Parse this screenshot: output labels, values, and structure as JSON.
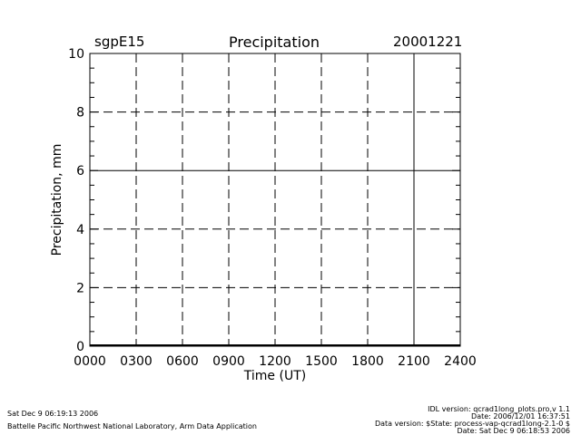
{
  "header": {
    "site": "sgpE15",
    "date": "20001221"
  },
  "chart_data": {
    "type": "line",
    "title": "Precipitation",
    "xlabel": "Time (UT)",
    "ylabel": "Precipitation, mm",
    "x_ticks": [
      "0000",
      "0300",
      "0600",
      "0900",
      "1200",
      "1500",
      "1800",
      "2100",
      "2400"
    ],
    "x_tick_values": [
      0,
      3,
      6,
      9,
      12,
      15,
      18,
      21,
      24
    ],
    "xlim": [
      0,
      24
    ],
    "y_ticks": [
      "0",
      "2",
      "4",
      "6",
      "8",
      "10"
    ],
    "y_tick_values": [
      0,
      2,
      4,
      6,
      8,
      10
    ],
    "ylim": [
      0,
      10
    ],
    "grid": true,
    "series": [
      {
        "x": [
          0,
          24
        ],
        "values": [
          0,
          0
        ]
      }
    ]
  },
  "footer": {
    "left_line1": "Sat Dec  9 06:19:13 2006",
    "left_line2": "Battelle Pacific Northwest National Laboratory, Arm Data Application",
    "right_line1": "IDL version: qcrad1long_plots.pro,v 1.1",
    "right_line2": "Date: 2006/12/01 16:37:51",
    "right_line3": "Data version: $State: process-vap-qcrad1long-2.1-0 $",
    "right_line4": "Date: Sat Dec  9 06:18:53 2006"
  }
}
